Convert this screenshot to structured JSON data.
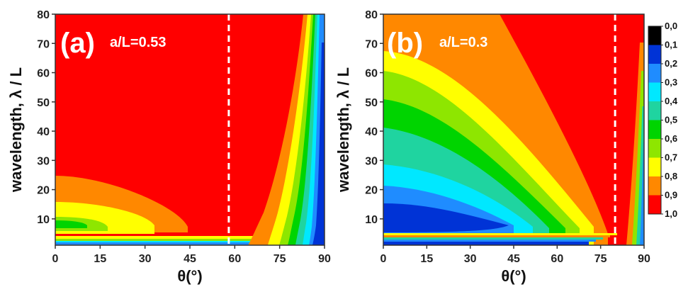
{
  "colors": {
    "levels": [
      "#000000",
      "#0033d6",
      "#1f8cff",
      "#00e8ff",
      "#1fd4a0",
      "#00d400",
      "#8ee600",
      "#ffff00",
      "#ff8800",
      "#ff0000"
    ]
  },
  "chart_data": [
    {
      "type": "heatmap",
      "panel_label": "(a)",
      "annotation": "a/L=0.53",
      "xlabel": "θ(°)",
      "ylabel": "wavelength, λ / L",
      "xlim": [
        0,
        90
      ],
      "ylim": [
        1,
        80
      ],
      "xticks": [
        "0",
        "15",
        "30",
        "45",
        "60",
        "75",
        "90"
      ],
      "yticks": [
        "10",
        "20",
        "30",
        "40",
        "50",
        "60",
        "70",
        "80"
      ],
      "dashed_line_x": 58,
      "colorbar": false
    },
    {
      "type": "heatmap",
      "panel_label": "(b)",
      "annotation": "a/L=0.3",
      "xlabel": "θ(°)",
      "ylabel": "wavelength, λ / L",
      "xlim": [
        0,
        90
      ],
      "ylim": [
        1,
        80
      ],
      "xticks": [
        "0",
        "15",
        "30",
        "45",
        "60",
        "75",
        "90"
      ],
      "yticks": [
        "10",
        "20",
        "30",
        "40",
        "50",
        "60",
        "70",
        "80"
      ],
      "dashed_line_x": 80,
      "colorbar": true,
      "colorbar_labels": [
        "0,0",
        "0,1",
        "0,2",
        "0,3",
        "0,4",
        "0,5",
        "0,6",
        "0,7",
        "0,8",
        "0,9",
        "1,0"
      ]
    }
  ]
}
